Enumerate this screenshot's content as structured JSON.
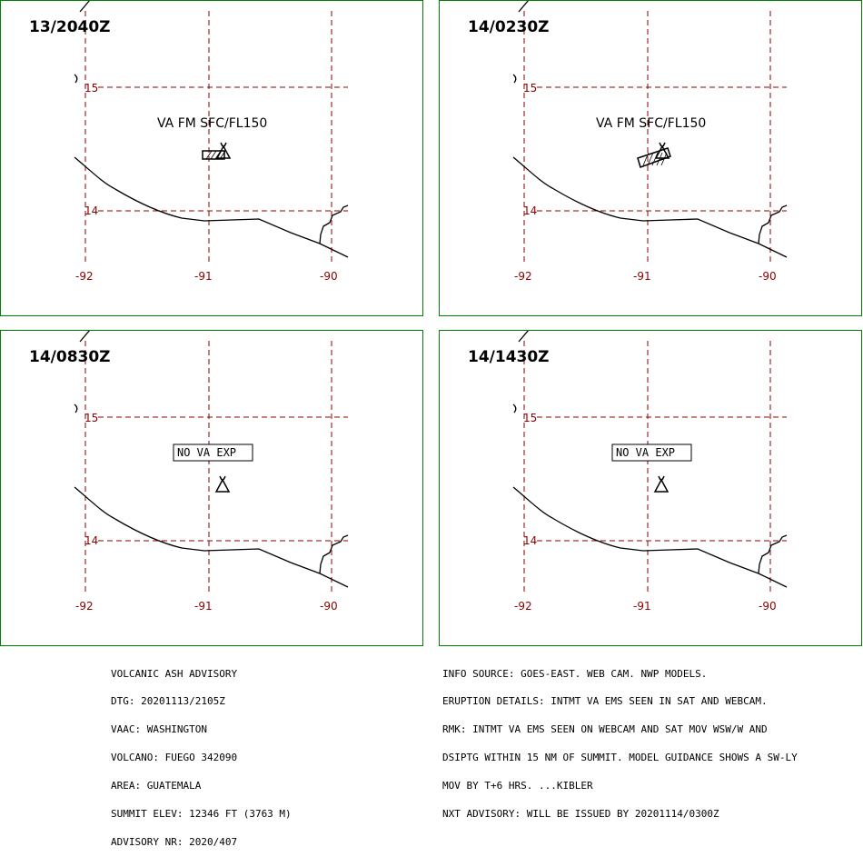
{
  "panels": [
    {
      "time_label": "13/2040Z",
      "va_label": "VA FM SFC/FL150",
      "no_exp_label": "",
      "ash_cloud": "east"
    },
    {
      "time_label": "14/0230Z",
      "va_label": "VA FM SFC/FL150",
      "no_exp_label": "",
      "ash_cloud": "southwest"
    },
    {
      "time_label": "14/0830Z",
      "va_label": "",
      "no_exp_label": "NO VA EXP",
      "ash_cloud": "none"
    },
    {
      "time_label": "14/1430Z",
      "va_label": "",
      "no_exp_label": "NO VA EXP",
      "ash_cloud": "none"
    }
  ],
  "lat_labels": [
    "15",
    "14"
  ],
  "lon_labels": [
    "-92",
    "-91",
    "-90"
  ],
  "advisory_left": [
    "VOLCANIC ASH ADVISORY",
    "DTG: 20201113/2105Z",
    "VAAC: WASHINGTON",
    "VOLCANO: FUEGO 342090",
    "AREA: GUATEMALA",
    "SUMMIT ELEV: 12346 FT (3763 M)",
    "ADVISORY NR: 2020/407"
  ],
  "advisory_right": [
    "INFO SOURCE: GOES-EAST. WEB CAM. NWP MODELS.",
    "ERUPTION DETAILS: INTMT VA EMS SEEN IN SAT AND WEBCAM.",
    "RMK: INTMT VA EMS SEEN ON WEBCAM AND SAT MOV WSW/W AND",
    "DSIPTG WITHIN 15 NM OF SUMMIT. MODEL GUIDANCE SHOWS A SW-LY",
    "MOV BY T+6 HRS. ...KIBLER",
    "NXT ADVISORY: WILL BE ISSUED BY 20201114/0300Z"
  ],
  "colors": {
    "frame": "#008000",
    "grid": "#8b0000",
    "coast": "#000000"
  }
}
